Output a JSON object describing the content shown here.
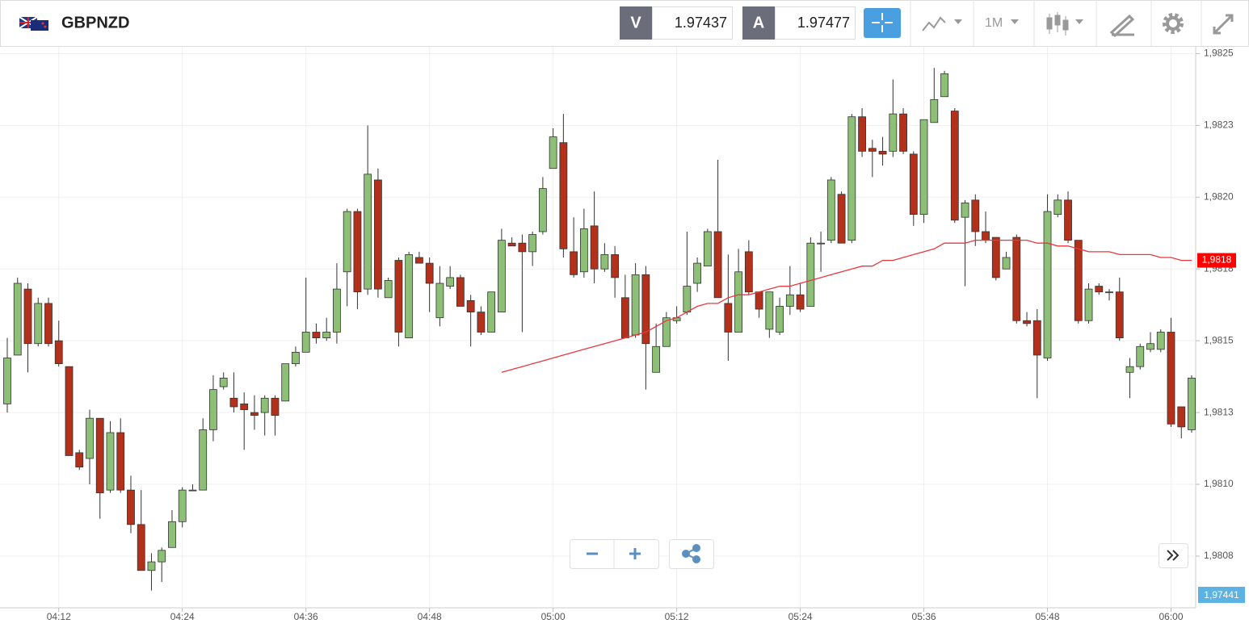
{
  "header": {
    "symbol": "GBPNZD",
    "bid_label": "V",
    "bid": 1.97437,
    "ask_label": "A",
    "ask": 1.97477,
    "timeframe": "1M",
    "bottom_tag": "1,97441"
  },
  "chart_data": {
    "type": "candlestick",
    "categories": [
      null,
      null,
      null,
      null,
      null,
      "04:12",
      null,
      null,
      null,
      null,
      null,
      null,
      null,
      null,
      null,
      null,
      null,
      "04:24",
      null,
      null,
      null,
      null,
      null,
      null,
      null,
      null,
      null,
      null,
      null,
      "04:36",
      null,
      null,
      null,
      null,
      null,
      null,
      null,
      null,
      null,
      null,
      null,
      "04:48",
      null,
      null,
      null,
      null,
      null,
      null,
      null,
      null,
      null,
      null,
      null,
      "05:00",
      null,
      null,
      null,
      null,
      null,
      null,
      null,
      null,
      null,
      null,
      null,
      "05:12",
      null,
      null,
      null,
      null,
      null,
      null,
      null,
      null,
      null,
      null,
      null,
      "05:24",
      null,
      null,
      null,
      null,
      null,
      null,
      null,
      null,
      null,
      null,
      null,
      "05:36",
      null,
      null,
      null,
      null,
      null,
      null,
      null,
      null,
      null,
      null,
      null,
      "05:48",
      null,
      null,
      null,
      null,
      null,
      null,
      null,
      null,
      null,
      null,
      null,
      "06:00",
      null,
      null
    ],
    "open": [
      1.98128,
      1.98145,
      1.98168,
      1.98149,
      1.98163,
      1.9815,
      1.98141,
      1.98111,
      1.98109,
      1.98123,
      1.98098,
      1.98118,
      1.98098,
      1.98086,
      1.9807,
      1.98073,
      1.98078,
      1.98087,
      1.98098,
      1.98098,
      1.98119,
      1.98134,
      1.9813,
      1.98128,
      1.98125,
      1.98125,
      1.9813,
      1.98129,
      1.98142,
      1.98146,
      1.98153,
      1.98151,
      1.98153,
      1.98174,
      1.98195,
      1.98168,
      1.98206,
      1.98165,
      1.98178,
      1.98151,
      1.98179,
      1.98177,
      1.98158,
      1.98169,
      1.98172,
      1.98164,
      1.9816,
      1.98153,
      1.9816,
      1.98184,
      1.98184,
      1.98181,
      1.98188,
      1.9821,
      1.98219,
      1.98181,
      1.98174,
      1.9819,
      1.98175,
      1.9818,
      1.98165,
      1.98152,
      1.98173,
      1.98139,
      1.98148,
      1.98157,
      1.9816,
      1.9817,
      1.98176,
      1.98188,
      1.98163,
      1.98153,
      1.98181,
      1.98167,
      1.98154,
      1.98153,
      1.98162,
      1.98166,
      1.98162,
      1.98184,
      1.98185,
      1.98201,
      1.98185,
      1.98228,
      1.98217,
      1.98216,
      1.98216,
      1.98229,
      1.98215,
      1.98194,
      1.98226,
      1.98235,
      1.9823,
      1.98193,
      1.98199,
      1.98188,
      1.98186,
      1.98175,
      1.98186,
      1.98157,
      1.98157,
      1.98144,
      1.98194,
      1.98199,
      1.98185,
      1.98157,
      1.98169,
      1.98167,
      1.98167,
      1.98139,
      1.98141,
      1.98147,
      1.98147,
      1.98153,
      1.98127,
      1.98119
    ],
    "high": [
      1.98151,
      1.98172,
      1.9817,
      1.98165,
      1.98165,
      1.98157,
      1.98141,
      1.98112,
      1.98126,
      1.98123,
      1.98122,
      1.98123,
      1.98103,
      1.98098,
      1.98076,
      1.98078,
      1.98091,
      1.98099,
      1.981,
      1.98123,
      1.98138,
      1.98139,
      1.98139,
      1.98132,
      1.98131,
      1.98131,
      1.98131,
      1.98142,
      1.98148,
      1.98172,
      1.98156,
      1.98158,
      1.98177,
      1.98196,
      1.98196,
      1.98225,
      1.9821,
      1.98172,
      1.98179,
      1.98181,
      1.98181,
      1.98179,
      1.98176,
      1.98176,
      1.98173,
      1.98166,
      1.98162,
      1.98167,
      1.98189,
      1.98186,
      1.98187,
      1.98188,
      1.98207,
      1.98224,
      1.98229,
      1.98193,
      1.98196,
      1.98202,
      1.98184,
      1.98183,
      1.98173,
      1.98177,
      1.98176,
      1.98156,
      1.9816,
      1.98162,
      1.98188,
      1.98179,
      1.98189,
      1.98213,
      1.9818,
      1.98182,
      1.98185,
      1.98167,
      1.98167,
      1.98165,
      1.98176,
      1.9817,
      1.98186,
      1.98188,
      1.98207,
      1.98202,
      1.98229,
      1.98231,
      1.9822,
      1.98221,
      1.98241,
      1.98231,
      1.98216,
      1.98227,
      1.98245,
      1.98244,
      1.98231,
      1.98199,
      1.98201,
      1.98195,
      1.98186,
      1.98181,
      1.98187,
      1.9816,
      1.98161,
      1.98201,
      1.98201,
      1.98202,
      1.98185,
      1.9817,
      1.9817,
      1.98168,
      1.98172,
      1.98144,
      1.98149,
      1.98153,
      1.98154,
      1.98158,
      1.98127,
      1.98138
    ],
    "low": [
      1.98125,
      1.98145,
      1.98139,
      1.98148,
      1.98148,
      1.98141,
      1.9811,
      1.98105,
      1.981,
      1.98088,
      1.98097,
      1.98097,
      1.98083,
      1.9807,
      1.98063,
      1.98066,
      1.98078,
      1.98085,
      1.98098,
      1.98098,
      1.98115,
      1.98133,
      1.98125,
      1.98112,
      1.98119,
      1.98117,
      1.98117,
      1.98129,
      1.98141,
      1.98146,
      1.98149,
      1.9815,
      1.98149,
      1.98162,
      1.98161,
      1.98166,
      1.98165,
      1.98165,
      1.98148,
      1.98151,
      1.98177,
      1.9816,
      1.98155,
      1.98168,
      1.98162,
      1.98148,
      1.98152,
      1.98153,
      1.9816,
      1.98183,
      1.98153,
      1.98176,
      1.98187,
      1.9821,
      1.98179,
      1.98172,
      1.98172,
      1.9817,
      1.98174,
      1.98165,
      1.98151,
      1.98151,
      1.98133,
      1.98139,
      1.98148,
      1.98156,
      1.98159,
      1.98167,
      1.98176,
      1.98165,
      1.98143,
      1.98153,
      1.98166,
      1.98158,
      1.98151,
      1.98152,
      1.98159,
      1.9816,
      1.98162,
      1.98174,
      1.98184,
      1.98184,
      1.98184,
      1.98214,
      1.98207,
      1.98211,
      1.98214,
      1.98215,
      1.9819,
      1.98191,
      1.98226,
      1.98235,
      1.98191,
      1.98169,
      1.98183,
      1.98184,
      1.98171,
      1.98175,
      1.98156,
      1.98155,
      1.9813,
      1.98143,
      1.98193,
      1.98184,
      1.98156,
      1.98156,
      1.98166,
      1.98164,
      1.9815,
      1.9813,
      1.9814,
      1.98146,
      1.98146,
      1.9812,
      1.98116,
      1.98118
    ],
    "close": [
      1.98144,
      1.9817,
      1.98149,
      1.98163,
      1.98149,
      1.98142,
      1.9811,
      1.98106,
      1.98123,
      1.98097,
      1.98118,
      1.98098,
      1.98086,
      1.9807,
      1.98073,
      1.98077,
      1.98087,
      1.98098,
      1.98098,
      1.98119,
      1.98133,
      1.98137,
      1.98127,
      1.98126,
      1.98124,
      1.9813,
      1.98124,
      1.98142,
      1.98146,
      1.98153,
      1.98151,
      1.98153,
      1.98168,
      1.98195,
      1.98167,
      1.98208,
      1.98168,
      1.98171,
      1.98153,
      1.9818,
      1.98177,
      1.9817,
      1.9817,
      1.98172,
      1.98162,
      1.9816,
      1.98153,
      1.98167,
      1.98185,
      1.98183,
      1.98181,
      1.98187,
      1.98203,
      1.98221,
      1.98182,
      1.98173,
      1.98189,
      1.98175,
      1.9818,
      1.98172,
      1.98151,
      1.98173,
      1.98149,
      1.98148,
      1.98158,
      1.98158,
      1.98169,
      1.98177,
      1.98188,
      1.98165,
      1.98153,
      1.98174,
      1.98167,
      1.98161,
      1.98167,
      1.98162,
      1.98166,
      1.98161,
      1.98184,
      1.98184,
      1.98206,
      1.98184,
      1.98228,
      1.98216,
      1.98216,
      1.98215,
      1.98229,
      1.98216,
      1.98194,
      1.98227,
      1.98234,
      1.98243,
      1.98192,
      1.98198,
      1.98188,
      1.98185,
      1.98172,
      1.98179,
      1.98157,
      1.98156,
      1.98145,
      1.98195,
      1.98199,
      1.98185,
      1.98157,
      1.98168,
      1.98167,
      1.98167,
      1.98151,
      1.98141,
      1.98148,
      1.98149,
      1.98153,
      1.98121,
      1.9812,
      1.98137
    ],
    "ma": {
      "color": "#e8383d",
      "values": [
        null,
        null,
        null,
        null,
        null,
        null,
        null,
        null,
        null,
        null,
        null,
        null,
        null,
        null,
        null,
        null,
        null,
        null,
        null,
        null,
        null,
        null,
        null,
        null,
        null,
        null,
        null,
        null,
        null,
        null,
        null,
        null,
        null,
        null,
        null,
        null,
        null,
        null,
        null,
        null,
        null,
        null,
        null,
        null,
        null,
        null,
        null,
        null,
        1.98139,
        1.9814,
        1.98141,
        1.98142,
        1.98143,
        1.98144,
        1.98145,
        1.98146,
        1.98147,
        1.98148,
        1.98149,
        1.9815,
        1.98151,
        1.98152,
        1.98153,
        1.98155,
        1.98157,
        1.98158,
        1.9816,
        1.98162,
        1.98163,
        1.98163,
        1.98165,
        1.98166,
        1.98166,
        1.98167,
        1.98168,
        1.98169,
        1.98169,
        1.9817,
        1.98171,
        1.98172,
        1.98173,
        1.98174,
        1.98175,
        1.98176,
        1.98176,
        1.98178,
        1.98178,
        1.98179,
        1.9818,
        1.98181,
        1.98182,
        1.98184,
        1.98184,
        1.98184,
        1.98185,
        1.98185,
        1.98185,
        1.98185,
        1.98185,
        1.98185,
        1.98184,
        1.98184,
        1.98183,
        1.98183,
        1.98182,
        1.98181,
        1.98181,
        1.98181,
        1.9818,
        1.9818,
        1.9818,
        1.9818,
        1.98179,
        1.98179,
        1.98178,
        1.98178
      ]
    },
    "price_marker": {
      "value": 1.98178,
      "label": "1,9818",
      "color": "#ff0000"
    },
    "up_color": "#8dbf76",
    "down_color": "#b3301a",
    "ylim": [
      1.98057,
      1.98252
    ],
    "yticks": [
      {
        "value": 1.9825,
        "label": "1,9825"
      },
      {
        "value": 1.98225,
        "label": "1,9823"
      },
      {
        "value": 1.982,
        "label": "1,9820"
      },
      {
        "value": 1.98175,
        "label": "1,9818"
      },
      {
        "value": 1.9815,
        "label": "1,9815"
      },
      {
        "value": 1.98125,
        "label": "1,9813"
      },
      {
        "value": 1.981,
        "label": "1,9810"
      },
      {
        "value": 1.98075,
        "label": "1,9808"
      }
    ],
    "grid": true
  }
}
